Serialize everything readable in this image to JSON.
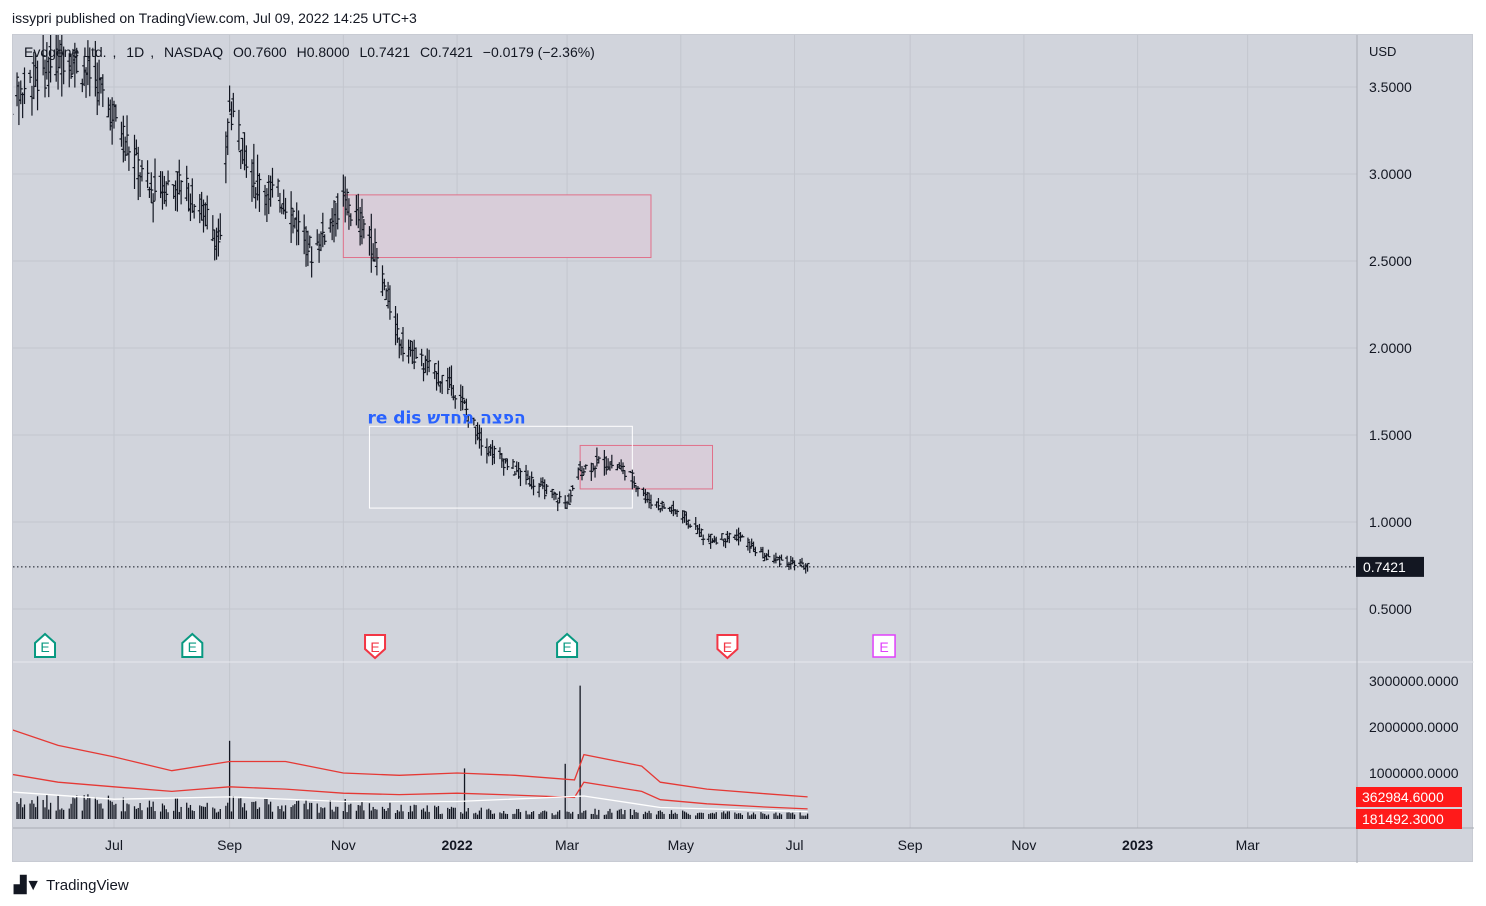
{
  "header": {
    "published_line": "issypri published on TradingView.com, Jul 09, 2022 14:25 UTC+3"
  },
  "legend": {
    "symbol": "Evogene Ltd.",
    "interval": "1D",
    "exchange": "NASDAQ",
    "open": "O0.7600",
    "high": "H0.8000",
    "low": "L0.7421",
    "close": "C0.7421",
    "change": "−0.0179 (−2.36%)"
  },
  "footer": {
    "brand": "TradingView"
  },
  "colors": {
    "background": "#d1d4dc",
    "candle": "#131722",
    "zone_fill": "#d8cdd9",
    "zone_stroke": "#e0708a",
    "volume_ma": "#e53935",
    "price_badge": "#131722",
    "volume_badge": "#ff1a1a",
    "annotation_text": "#2962ff",
    "earnings_green": "#089981",
    "earnings_red": "#f23645",
    "earnings_purple": "#e040fb"
  },
  "chart_data": {
    "type": "ohlc_bar",
    "currency": "USD",
    "price_ticks": [
      "3.5000",
      "3.0000",
      "2.5000",
      "2.0000",
      "1.5000",
      "1.0000",
      "0.5000"
    ],
    "price_tick_values": [
      3.5,
      3.0,
      2.5,
      2.0,
      1.5,
      1.0,
      0.5
    ],
    "last_price": "0.7421",
    "volume_ticks": [
      "3000000.0000",
      "2000000.0000",
      "1000000.0000"
    ],
    "volume_tick_values": [
      3000000,
      2000000,
      1000000
    ],
    "volume_labels": [
      "362984.6000",
      "181492.3000"
    ],
    "volume_label_values": [
      362984.6,
      181492.3
    ],
    "x_ticks": [
      "Jul",
      "Sep",
      "Nov",
      "2022",
      "Mar",
      "May",
      "Jul",
      "Sep",
      "Nov",
      "2023",
      "Mar"
    ],
    "x_tick_dates": [
      "2021-07-01",
      "2021-09-01",
      "2021-11-01",
      "2022-01-01",
      "2022-03-01",
      "2022-05-01",
      "2022-07-01",
      "2022-09-01",
      "2022-11-01",
      "2023-01-01",
      "2023-03-01"
    ],
    "x_tick_bold": [
      false,
      false,
      false,
      true,
      false,
      false,
      false,
      false,
      false,
      true,
      false
    ],
    "price_path": [
      [
        "2021-05-03",
        3.4
      ],
      [
        "2021-05-20",
        3.55
      ],
      [
        "2021-06-05",
        3.7
      ],
      [
        "2021-06-20",
        3.55
      ],
      [
        "2021-07-05",
        3.25
      ],
      [
        "2021-07-20",
        2.9
      ],
      [
        "2021-08-05",
        2.95
      ],
      [
        "2021-08-20",
        2.75
      ],
      [
        "2021-08-27",
        2.6
      ],
      [
        "2021-09-01",
        3.4
      ],
      [
        "2021-09-15",
        2.95
      ],
      [
        "2021-10-01",
        2.85
      ],
      [
        "2021-10-15",
        2.55
      ],
      [
        "2021-11-01",
        2.85
      ],
      [
        "2021-11-15",
        2.65
      ],
      [
        "2021-12-01",
        2.05
      ],
      [
        "2021-12-15",
        1.9
      ],
      [
        "2022-01-01",
        1.75
      ],
      [
        "2022-01-15",
        1.45
      ],
      [
        "2022-02-01",
        1.3
      ],
      [
        "2022-02-15",
        1.2
      ],
      [
        "2022-03-01",
        1.1
      ],
      [
        "2022-03-08",
        1.3
      ],
      [
        "2022-03-20",
        1.35
      ],
      [
        "2022-04-01",
        1.3
      ],
      [
        "2022-04-15",
        1.12
      ],
      [
        "2022-05-01",
        1.05
      ],
      [
        "2022-05-15",
        0.9
      ],
      [
        "2022-06-01",
        0.92
      ],
      [
        "2022-06-15",
        0.8
      ],
      [
        "2022-07-08",
        0.7421
      ]
    ],
    "zones": [
      {
        "x0": "2021-11-01",
        "x1": "2022-04-15",
        "y0": 2.52,
        "y1": 2.88,
        "style": "pink"
      },
      {
        "x0": "2022-03-08",
        "x1": "2022-05-18",
        "y0": 1.19,
        "y1": 1.44,
        "style": "pink"
      },
      {
        "x0": "2021-11-15",
        "x1": "2022-04-05",
        "y0": 1.08,
        "y1": 1.55,
        "style": "white"
      }
    ],
    "annotation": {
      "text": "re dis הפצה מחדש",
      "date": "2021-11-15",
      "price": 1.6
    },
    "earnings": [
      {
        "date": "2021-05-25",
        "style": "green"
      },
      {
        "date": "2021-08-12",
        "style": "green"
      },
      {
        "date": "2021-11-18",
        "style": "red"
      },
      {
        "date": "2022-03-01",
        "style": "green"
      },
      {
        "date": "2022-05-26",
        "style": "red"
      },
      {
        "date": "2022-08-18",
        "style": "purple"
      }
    ],
    "volume_spikes": [
      [
        "2021-09-01",
        1700000
      ],
      [
        "2022-01-05",
        1100000
      ],
      [
        "2022-02-28",
        1200000
      ],
      [
        "2022-03-08",
        2900000
      ]
    ],
    "volume_ma_upper": [
      [
        "2021-05-03",
        2000000
      ],
      [
        "2021-06-01",
        1600000
      ],
      [
        "2021-07-01",
        1350000
      ],
      [
        "2021-08-01",
        1050000
      ],
      [
        "2021-09-01",
        1250000
      ],
      [
        "2021-10-01",
        1250000
      ],
      [
        "2021-11-01",
        1000000
      ],
      [
        "2021-12-01",
        950000
      ],
      [
        "2022-01-01",
        1000000
      ],
      [
        "2022-02-01",
        950000
      ],
      [
        "2022-03-05",
        850000
      ],
      [
        "2022-03-10",
        1400000
      ],
      [
        "2022-04-10",
        1150000
      ],
      [
        "2022-04-20",
        800000
      ],
      [
        "2022-05-15",
        650000
      ],
      [
        "2022-06-15",
        550000
      ],
      [
        "2022-07-08",
        480000
      ]
    ],
    "volume_ma_lower": [
      [
        "2021-05-03",
        1000000
      ],
      [
        "2021-06-01",
        800000
      ],
      [
        "2021-07-01",
        700000
      ],
      [
        "2021-08-01",
        600000
      ],
      [
        "2021-09-01",
        700000
      ],
      [
        "2021-10-01",
        650000
      ],
      [
        "2021-11-01",
        560000
      ],
      [
        "2021-12-01",
        530000
      ],
      [
        "2022-01-01",
        560000
      ],
      [
        "2022-02-01",
        520000
      ],
      [
        "2022-03-05",
        470000
      ],
      [
        "2022-03-10",
        800000
      ],
      [
        "2022-04-10",
        600000
      ],
      [
        "2022-04-20",
        420000
      ],
      [
        "2022-05-15",
        330000
      ],
      [
        "2022-06-15",
        260000
      ],
      [
        "2022-07-08",
        220000
      ]
    ],
    "volume_ma_white": [
      [
        "2021-05-03",
        600000
      ],
      [
        "2021-07-01",
        430000
      ],
      [
        "2021-09-01",
        480000
      ],
      [
        "2021-11-01",
        380000
      ],
      [
        "2022-01-01",
        380000
      ],
      [
        "2022-03-10",
        500000
      ],
      [
        "2022-04-20",
        250000
      ],
      [
        "2022-07-08",
        160000
      ]
    ]
  }
}
